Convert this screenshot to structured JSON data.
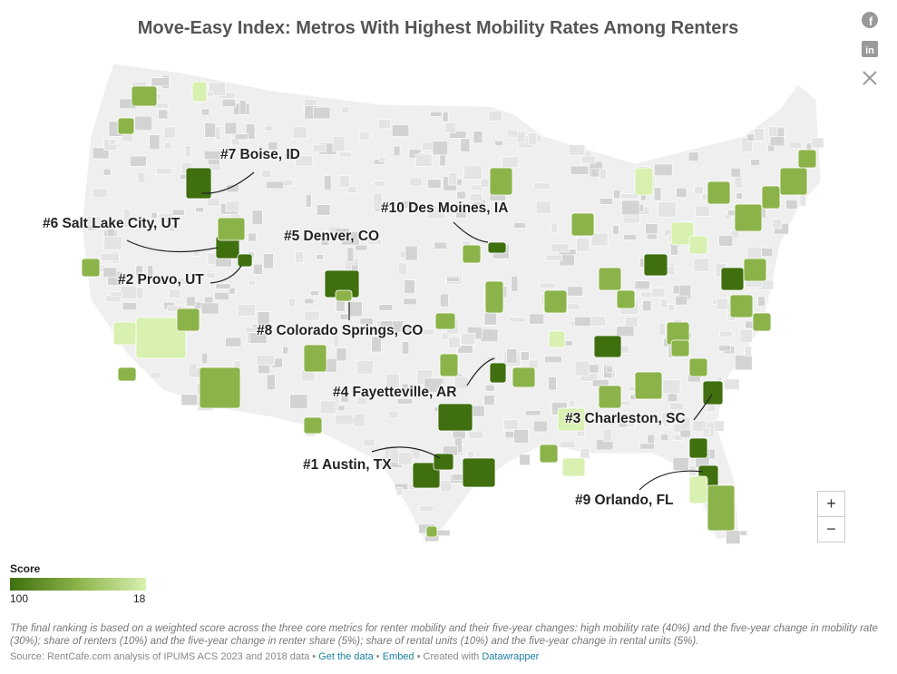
{
  "title": "Move-Easy Index: Metros With Highest Mobility Rates Among Renters",
  "social": {
    "icons": [
      "facebook-icon",
      "linkedin-icon",
      "x-icon"
    ]
  },
  "map": {
    "labels": [
      {
        "rank": "#1",
        "text": "#1 Austin, TX"
      },
      {
        "rank": "#2",
        "text": "#2 Provo, UT"
      },
      {
        "rank": "#3",
        "text": "#3 Charleston, SC"
      },
      {
        "rank": "#4",
        "text": "#4 Fayetteville, AR"
      },
      {
        "rank": "#5",
        "text": "#5 Denver, CO"
      },
      {
        "rank": "#6",
        "text": "#6 Salt Lake City, UT"
      },
      {
        "rank": "#7",
        "text": "#7 Boise, ID"
      },
      {
        "rank": "#8",
        "text": "#8 Colorado Springs, CO"
      },
      {
        "rank": "#9",
        "text": "#9 Orlando, FL"
      },
      {
        "rank": "#10",
        "text": "#10 Des Moines, IA"
      }
    ],
    "zoom_in": "+",
    "zoom_out": "−",
    "colors": {
      "high": "#3f6f0f",
      "mid": "#8cb34a",
      "low": "#d8f0b0",
      "county": "#d9d9d9",
      "land": "#efefef"
    }
  },
  "legend": {
    "title": "Score",
    "min_label": "100",
    "max_label": "18"
  },
  "note": "The final ranking is based on a weighted score across the three core metrics for renter mobility and their five-year changes: high mobility rate (40%) and the five-year change in mobility rate (30%); share of renters (10%) and the five-year change in renter share (5%); share of rental units (10%) and the five-year change in rental units (5%).",
  "source": {
    "text": "Source: RentCafe.com analysis of IPUMS ACS 2023 and 2018 data",
    "get_data": "Get the data",
    "embed": "Embed",
    "created": "Created with",
    "datawrapper": "Datawrapper"
  }
}
